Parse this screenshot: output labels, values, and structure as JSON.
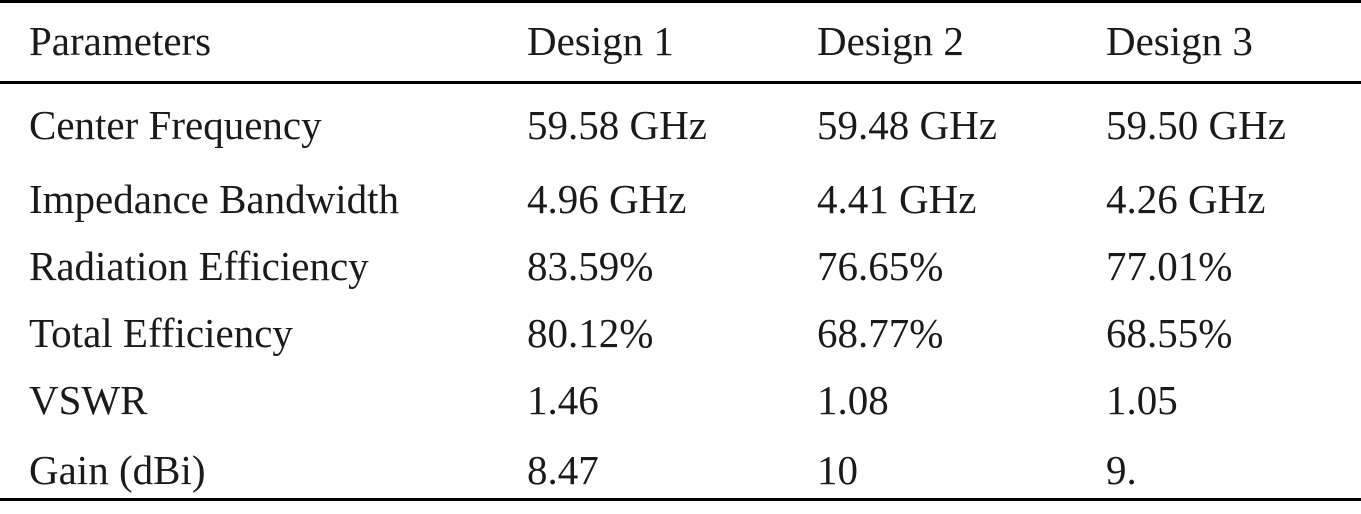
{
  "table": {
    "headers": [
      "Parameters",
      "Design 1",
      "Design 2",
      "Design 3"
    ],
    "rows": [
      [
        "Center Frequency",
        "59.58 GHz",
        "59.48 GHz",
        "59.50 GHz"
      ],
      [
        "Impedance Bandwidth",
        "4.96 GHz",
        "4.41 GHz",
        "4.26 GHz"
      ],
      [
        "Radiation Efficiency",
        "83.59%",
        "76.65%",
        "77.01%"
      ],
      [
        "Total Efficiency",
        "80.12%",
        "68.77%",
        "68.55%"
      ],
      [
        "VSWR",
        "1.46",
        "1.08",
        "1.05"
      ],
      [
        "Gain (dBi)",
        "8.47",
        "10",
        "9."
      ]
    ]
  }
}
